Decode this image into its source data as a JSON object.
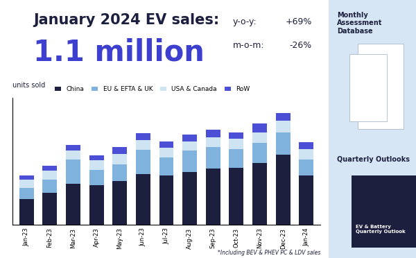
{
  "chart_data": {
    "type": "bar",
    "stacked": true,
    "title": "January 2024 EV sales:",
    "subtitle": "1.1 million",
    "annotations": [
      {
        "label": "y-o-y:",
        "value": "+69%"
      },
      {
        "label": "m-o-m:",
        "value": "-26%"
      }
    ],
    "y_label": "units sold",
    "footnote": "*Including BEV & PHEV PC & LDV sales",
    "categories": [
      "Jan-23",
      "Feb-23",
      "Mar-23",
      "Apr-23",
      "May-23",
      "Jun-23",
      "Jul-23",
      "Aug-23",
      "Sep-23",
      "Oct-23",
      "Nov-23",
      "Dec-23",
      "Jan-24"
    ],
    "series": [
      {
        "name": "China",
        "color": "#1c1f3d",
        "values": [
          0.34,
          0.43,
          0.55,
          0.53,
          0.58,
          0.68,
          0.66,
          0.71,
          0.75,
          0.76,
          0.83,
          0.94,
          0.66
        ]
      },
      {
        "name": "EU & EFTA & UK",
        "color": "#7fb3de",
        "values": [
          0.15,
          0.17,
          0.32,
          0.2,
          0.23,
          0.32,
          0.24,
          0.28,
          0.29,
          0.25,
          0.27,
          0.3,
          0.21
        ]
      },
      {
        "name": "USA & Canada",
        "color": "#cfe4f3",
        "values": [
          0.11,
          0.12,
          0.12,
          0.13,
          0.14,
          0.13,
          0.13,
          0.13,
          0.13,
          0.14,
          0.14,
          0.16,
          0.14
        ]
      },
      {
        "name": "RoW",
        "color": "#4b4fd6",
        "values": [
          0.06,
          0.07,
          0.08,
          0.07,
          0.09,
          0.1,
          0.09,
          0.09,
          0.1,
          0.09,
          0.12,
          0.1,
          0.1
        ]
      }
    ],
    "ylim": [
      0,
      1.7
    ],
    "yticks": [],
    "tick_labels": "x",
    "legend": "lower left"
  },
  "sidebar": {
    "sections": [
      {
        "title": "Monthly Assessment Database"
      },
      {
        "title": "Quarterly Outlooks",
        "thumbnail": "EV & Battery Quarterly Outlook"
      }
    ]
  }
}
